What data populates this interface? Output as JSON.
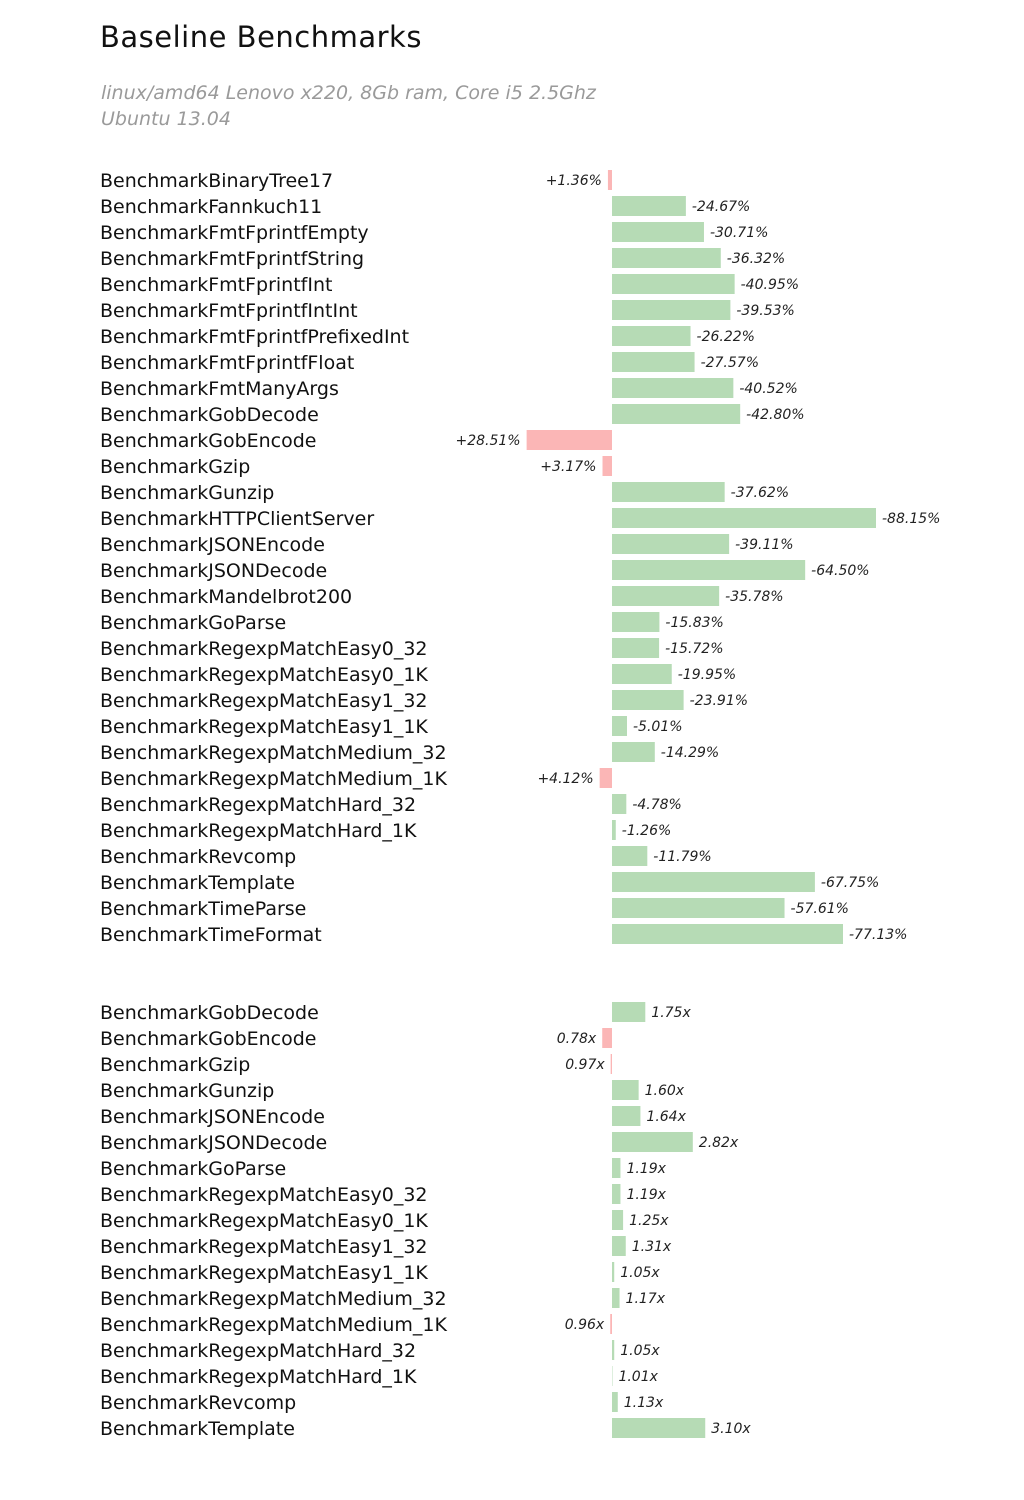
{
  "header": {
    "title": "Baseline Benchmarks",
    "subtitle_line1": "linux/amd64 Lenovo x220, 8Gb ram, Core i5 2.5Ghz",
    "subtitle_line2": "Ubuntu 13.04"
  },
  "colors": {
    "improvement": "#b6dbb5",
    "regression": "#fbb6b6"
  },
  "chart_data": [
    {
      "type": "bar",
      "orientation": "horizontal",
      "title": "",
      "unit": "%",
      "categories": [
        "BenchmarkBinaryTree17",
        "BenchmarkFannkuch11",
        "BenchmarkFmtFprintfEmpty",
        "BenchmarkFmtFprintfString",
        "BenchmarkFmtFprintfInt",
        "BenchmarkFmtFprintfIntInt",
        "BenchmarkFmtFprintfPrefixedInt",
        "BenchmarkFmtFprintfFloat",
        "BenchmarkFmtManyArgs",
        "BenchmarkGobDecode",
        "BenchmarkGobEncode",
        "BenchmarkGzip",
        "BenchmarkGunzip",
        "BenchmarkHTTPClientServer",
        "BenchmarkJSONEncode",
        "BenchmarkJSONDecode",
        "BenchmarkMandelbrot200",
        "BenchmarkGoParse",
        "BenchmarkRegexpMatchEasy0_32",
        "BenchmarkRegexpMatchEasy0_1K",
        "BenchmarkRegexpMatchEasy1_32",
        "BenchmarkRegexpMatchEasy1_1K",
        "BenchmarkRegexpMatchMedium_32",
        "BenchmarkRegexpMatchMedium_1K",
        "BenchmarkRegexpMatchHard_32",
        "BenchmarkRegexpMatchHard_1K",
        "BenchmarkRevcomp",
        "BenchmarkTemplate",
        "BenchmarkTimeParse",
        "BenchmarkTimeFormat"
      ],
      "values": [
        1.36,
        -24.67,
        -30.71,
        -36.32,
        -40.95,
        -39.53,
        -26.22,
        -27.57,
        -40.52,
        -42.8,
        28.51,
        3.17,
        -37.62,
        -88.15,
        -39.11,
        -64.5,
        -35.78,
        -15.83,
        -15.72,
        -19.95,
        -23.91,
        -5.01,
        -14.29,
        4.12,
        -4.78,
        -1.26,
        -11.79,
        -67.75,
        -57.61,
        -77.13
      ],
      "value_labels": [
        "+1.36%",
        "-24.67%",
        "-30.71%",
        "-36.32%",
        "-40.95%",
        "-39.53%",
        "-26.22%",
        "-27.57%",
        "-40.52%",
        "-42.80%",
        "+28.51%",
        "+3.17%",
        "-37.62%",
        "-88.15%",
        "-39.11%",
        "-64.50%",
        "-35.78%",
        "-15.83%",
        "-15.72%",
        "-19.95%",
        "-23.91%",
        "-5.01%",
        "-14.29%",
        "+4.12%",
        "-4.78%",
        "-1.26%",
        "-11.79%",
        "-67.75%",
        "-57.61%",
        "-77.13%"
      ],
      "baseline": 0,
      "xlim": [
        -88.15,
        28.51
      ]
    },
    {
      "type": "bar",
      "orientation": "horizontal",
      "title": "",
      "unit": "x",
      "categories": [
        "BenchmarkGobDecode",
        "BenchmarkGobEncode",
        "BenchmarkGzip",
        "BenchmarkGunzip",
        "BenchmarkJSONEncode",
        "BenchmarkJSONDecode",
        "BenchmarkGoParse",
        "BenchmarkRegexpMatchEasy0_32",
        "BenchmarkRegexpMatchEasy0_1K",
        "BenchmarkRegexpMatchEasy1_32",
        "BenchmarkRegexpMatchEasy1_1K",
        "BenchmarkRegexpMatchMedium_32",
        "BenchmarkRegexpMatchMedium_1K",
        "BenchmarkRegexpMatchHard_32",
        "BenchmarkRegexpMatchHard_1K",
        "BenchmarkRevcomp",
        "BenchmarkTemplate"
      ],
      "values": [
        1.75,
        0.78,
        0.97,
        1.6,
        1.64,
        2.82,
        1.19,
        1.19,
        1.25,
        1.31,
        1.05,
        1.17,
        0.96,
        1.05,
        1.01,
        1.13,
        3.1
      ],
      "value_labels": [
        "1.75x",
        "0.78x",
        "0.97x",
        "1.60x",
        "1.64x",
        "2.82x",
        "1.19x",
        "1.19x",
        "1.25x",
        "1.31x",
        "1.05x",
        "1.17x",
        "0.96x",
        "1.05x",
        "1.01x",
        "1.13x",
        "3.10x"
      ],
      "baseline": 1
    }
  ]
}
